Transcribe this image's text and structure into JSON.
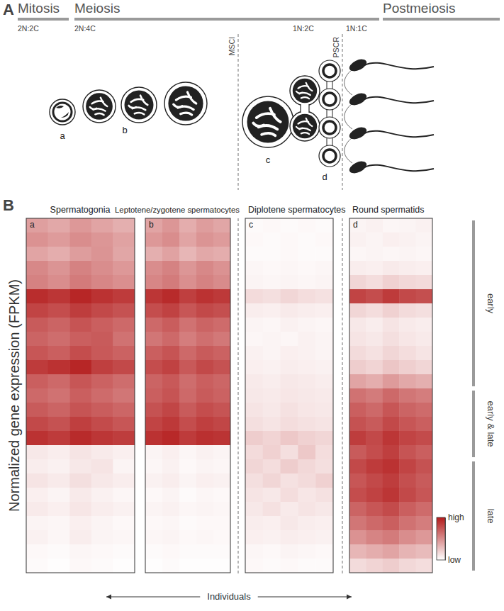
{
  "diagram": {
    "panel_label": "A",
    "phases": [
      "Mitosis",
      "Meiosis",
      "Postmeiosis"
    ],
    "ploidy": [
      "2N:2C",
      "2N:4C",
      "1N:2C",
      "1N:1C"
    ],
    "transitions": [
      "MSCI",
      "PSCR"
    ],
    "cell_labels": [
      "a",
      "b",
      "c",
      "d"
    ]
  },
  "chart_data": {
    "type": "heatmap",
    "panel_label": "B",
    "y_label": "Normalized gene expression (FPKM)",
    "x_label": "Individuals",
    "tick_labels": false,
    "color": "#b31b1b",
    "color_range": [
      0,
      1
    ],
    "color_ticks": [
      {
        "value": 1,
        "label": "high"
      },
      {
        "value": 0,
        "label": "low"
      }
    ],
    "row_groups": [
      {
        "label": "early",
        "first_row": 0,
        "last_row": 11
      },
      {
        "label": "early & late",
        "first_row": 12,
        "last_row": 16
      },
      {
        "label": "late",
        "first_row": 17,
        "last_row": 24
      }
    ],
    "panels": [
      {
        "title": "Spermatogonia",
        "letter": "a",
        "cells": [
          [
            0.42,
            0.38,
            0.45,
            0.4,
            0.35
          ],
          [
            0.48,
            0.44,
            0.5,
            0.46,
            0.41
          ],
          [
            0.4,
            0.36,
            0.43,
            0.47,
            0.39
          ],
          [
            0.52,
            0.47,
            0.55,
            0.5,
            0.45
          ],
          [
            0.55,
            0.5,
            0.58,
            0.53,
            0.49
          ],
          [
            0.92,
            0.88,
            0.95,
            0.9,
            0.86
          ],
          [
            0.82,
            0.78,
            0.85,
            0.8,
            0.76
          ],
          [
            0.72,
            0.68,
            0.75,
            0.7,
            0.66
          ],
          [
            0.68,
            0.64,
            0.7,
            0.72,
            0.62
          ],
          [
            0.74,
            0.7,
            0.78,
            0.73,
            0.69
          ],
          [
            0.86,
            0.9,
            0.95,
            0.84,
            0.8
          ],
          [
            0.7,
            0.66,
            0.74,
            0.69,
            0.64
          ],
          [
            0.66,
            0.62,
            0.7,
            0.65,
            0.6
          ],
          [
            0.72,
            0.68,
            0.75,
            0.71,
            0.67
          ],
          [
            0.8,
            0.76,
            0.84,
            0.79,
            0.74
          ],
          [
            0.9,
            0.86,
            0.93,
            0.88,
            0.85
          ],
          [
            0.1,
            0.08,
            0.12,
            0.09,
            0.07
          ],
          [
            0.08,
            0.06,
            0.1,
            0.12,
            0.05
          ],
          [
            0.12,
            0.09,
            0.14,
            0.1,
            0.08
          ],
          [
            0.07,
            0.05,
            0.09,
            0.06,
            0.04
          ],
          [
            0.09,
            0.07,
            0.11,
            0.08,
            0.06
          ],
          [
            0.05,
            0.04,
            0.07,
            0.05,
            0.03
          ],
          [
            0.06,
            0.04,
            0.08,
            0.05,
            0.04
          ],
          [
            0.03,
            0.02,
            0.04,
            0.03,
            0.02
          ],
          [
            0.02,
            0.01,
            0.03,
            0.02,
            0.01
          ]
        ]
      },
      {
        "title": "Leptotene/zygotene spermatocytes",
        "letter": "b",
        "cells": [
          [
            0.4,
            0.46,
            0.36,
            0.43,
            0.39
          ],
          [
            0.45,
            0.5,
            0.4,
            0.47,
            0.44
          ],
          [
            0.35,
            0.41,
            0.32,
            0.38,
            0.36
          ],
          [
            0.5,
            0.55,
            0.46,
            0.52,
            0.48
          ],
          [
            0.53,
            0.58,
            0.49,
            0.55,
            0.51
          ],
          [
            0.88,
            0.93,
            0.84,
            0.9,
            0.87
          ],
          [
            0.78,
            0.83,
            0.74,
            0.8,
            0.77
          ],
          [
            0.66,
            0.71,
            0.62,
            0.68,
            0.65
          ],
          [
            0.6,
            0.66,
            0.57,
            0.63,
            0.59
          ],
          [
            0.7,
            0.75,
            0.66,
            0.72,
            0.69
          ],
          [
            0.78,
            0.83,
            0.73,
            0.8,
            0.76
          ],
          [
            0.68,
            0.73,
            0.64,
            0.7,
            0.67
          ],
          [
            0.7,
            0.75,
            0.66,
            0.72,
            0.69
          ],
          [
            0.76,
            0.81,
            0.72,
            0.78,
            0.75
          ],
          [
            0.82,
            0.87,
            0.78,
            0.84,
            0.81
          ],
          [
            0.9,
            0.94,
            0.86,
            0.91,
            0.89
          ],
          [
            0.05,
            0.07,
            0.04,
            0.06,
            0.05
          ],
          [
            0.04,
            0.06,
            0.03,
            0.05,
            0.04
          ],
          [
            0.06,
            0.08,
            0.05,
            0.07,
            0.06
          ],
          [
            0.03,
            0.05,
            0.02,
            0.04,
            0.03
          ],
          [
            0.05,
            0.06,
            0.04,
            0.05,
            0.04
          ],
          [
            0.03,
            0.04,
            0.02,
            0.03,
            0.03
          ],
          [
            0.04,
            0.05,
            0.03,
            0.04,
            0.03
          ],
          [
            0.02,
            0.03,
            0.02,
            0.02,
            0.02
          ],
          [
            0.01,
            0.02,
            0.01,
            0.01,
            0.01
          ]
        ]
      },
      {
        "title": "Diplotene spermatocytes",
        "letter": "c",
        "cells": [
          [
            0.02,
            0.03,
            0.02,
            0.03,
            0.02
          ],
          [
            0.03,
            0.02,
            0.03,
            0.02,
            0.03
          ],
          [
            0.02,
            0.02,
            0.03,
            0.02,
            0.02
          ],
          [
            0.04,
            0.03,
            0.04,
            0.03,
            0.04
          ],
          [
            0.05,
            0.04,
            0.05,
            0.04,
            0.05
          ],
          [
            0.16,
            0.14,
            0.18,
            0.15,
            0.13
          ],
          [
            0.08,
            0.07,
            0.09,
            0.08,
            0.07
          ],
          [
            0.05,
            0.04,
            0.06,
            0.05,
            0.04
          ],
          [
            0.04,
            0.05,
            0.04,
            0.06,
            0.05
          ],
          [
            0.06,
            0.05,
            0.07,
            0.06,
            0.05
          ],
          [
            0.07,
            0.06,
            0.08,
            0.07,
            0.06
          ],
          [
            0.09,
            0.08,
            0.1,
            0.09,
            0.08
          ],
          [
            0.1,
            0.09,
            0.11,
            0.1,
            0.09
          ],
          [
            0.12,
            0.1,
            0.13,
            0.11,
            0.1
          ],
          [
            0.14,
            0.12,
            0.15,
            0.13,
            0.12
          ],
          [
            0.22,
            0.19,
            0.24,
            0.2,
            0.18
          ],
          [
            0.16,
            0.2,
            0.14,
            0.24,
            0.15
          ],
          [
            0.18,
            0.15,
            0.22,
            0.17,
            0.14
          ],
          [
            0.14,
            0.18,
            0.13,
            0.16,
            0.2
          ],
          [
            0.12,
            0.1,
            0.15,
            0.11,
            0.13
          ],
          [
            0.1,
            0.13,
            0.09,
            0.12,
            0.1
          ],
          [
            0.08,
            0.07,
            0.1,
            0.08,
            0.07
          ],
          [
            0.07,
            0.06,
            0.08,
            0.07,
            0.06
          ],
          [
            0.04,
            0.03,
            0.05,
            0.04,
            0.03
          ],
          [
            0.03,
            0.02,
            0.03,
            0.02,
            0.02
          ]
        ]
      },
      {
        "title": "Round spermatids",
        "letter": "d",
        "cells": [
          [
            0.05,
            0.06,
            0.04,
            0.05,
            0.06
          ],
          [
            0.06,
            0.05,
            0.07,
            0.06,
            0.05
          ],
          [
            0.04,
            0.05,
            0.04,
            0.05,
            0.04
          ],
          [
            0.08,
            0.07,
            0.09,
            0.08,
            0.07
          ],
          [
            0.18,
            0.15,
            0.2,
            0.17,
            0.16
          ],
          [
            0.82,
            0.78,
            0.86,
            0.8,
            0.77
          ],
          [
            0.18,
            0.15,
            0.2,
            0.16,
            0.14
          ],
          [
            0.1,
            0.08,
            0.12,
            0.09,
            0.08
          ],
          [
            0.12,
            0.1,
            0.14,
            0.11,
            0.09
          ],
          [
            0.16,
            0.13,
            0.18,
            0.15,
            0.12
          ],
          [
            0.22,
            0.19,
            0.25,
            0.21,
            0.18
          ],
          [
            0.4,
            0.36,
            0.44,
            0.38,
            0.35
          ],
          [
            0.62,
            0.58,
            0.66,
            0.6,
            0.57
          ],
          [
            0.7,
            0.66,
            0.74,
            0.68,
            0.65
          ],
          [
            0.76,
            0.72,
            0.8,
            0.74,
            0.7
          ],
          [
            0.85,
            0.8,
            0.88,
            0.82,
            0.79
          ],
          [
            0.72,
            0.78,
            0.84,
            0.75,
            0.7
          ],
          [
            0.8,
            0.86,
            0.9,
            0.82,
            0.76
          ],
          [
            0.74,
            0.8,
            0.85,
            0.77,
            0.72
          ],
          [
            0.78,
            0.83,
            0.88,
            0.8,
            0.74
          ],
          [
            0.68,
            0.74,
            0.79,
            0.7,
            0.65
          ],
          [
            0.6,
            0.66,
            0.7,
            0.62,
            0.57
          ],
          [
            0.48,
            0.54,
            0.58,
            0.5,
            0.45
          ],
          [
            0.32,
            0.36,
            0.4,
            0.33,
            0.3
          ],
          [
            0.16,
            0.19,
            0.22,
            0.17,
            0.15
          ]
        ]
      }
    ]
  }
}
